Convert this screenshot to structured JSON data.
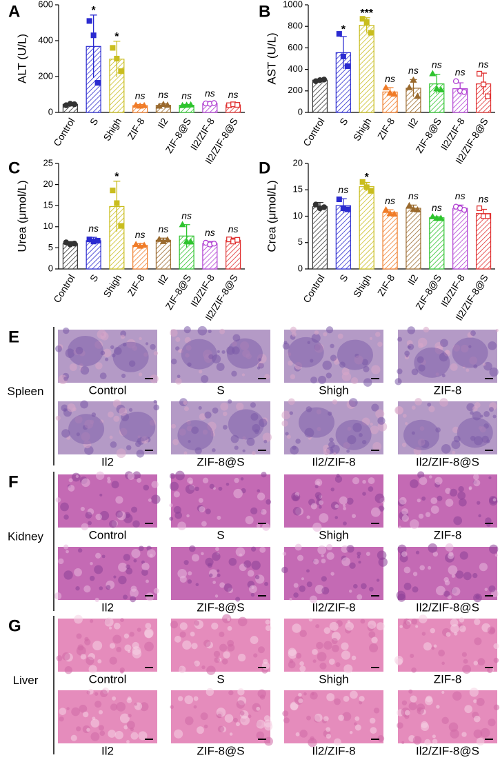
{
  "chart_data": [
    {
      "type": "bar",
      "panel": "A",
      "ylabel": "ALT (U/L)",
      "categories": [
        "Control",
        "S",
        "Shigh",
        "ZIF-8",
        "Il2",
        "ZIF-8@S",
        "Il2/ZIF-8",
        "Il2/ZIF-8@S"
      ],
      "colors": [
        "#333333",
        "#2b2bd0",
        "#c9bd1e",
        "#f07c28",
        "#9a6a2e",
        "#2ec42e",
        "#b03ed2",
        "#e03030"
      ],
      "values": [
        45,
        368,
        297,
        38,
        40,
        40,
        50,
        42
      ],
      "errors": [
        6,
        175,
        100,
        6,
        8,
        4,
        6,
        6
      ],
      "points": [
        [
          40,
          48,
          45
        ],
        [
          510,
          430,
          165
        ],
        [
          360,
          300,
          230
        ],
        [
          40,
          35,
          38
        ],
        [
          35,
          45,
          40
        ],
        [
          38,
          40,
          42
        ],
        [
          50,
          48,
          52
        ],
        [
          40,
          45,
          42
        ]
      ],
      "significance": [
        null,
        "*",
        "*",
        "ns",
        "ns",
        "ns",
        "ns",
        "ns"
      ],
      "ylim": [
        0,
        600
      ],
      "yticks": [
        0,
        200,
        400,
        600
      ]
    },
    {
      "type": "bar",
      "panel": "B",
      "ylabel": "AST (U/L)",
      "categories": [
        "Control",
        "S",
        "Shigh",
        "ZIF-8",
        "Il2",
        "ZIF-8@S",
        "Il2/ZIF-8",
        "Il2/ZIF-8@S"
      ],
      "colors": [
        "#333333",
        "#2b2bd0",
        "#c9bd1e",
        "#f07c28",
        "#9a6a2e",
        "#2ec42e",
        "#b03ed2",
        "#e03030"
      ],
      "values": [
        300,
        555,
        810,
        190,
        225,
        265,
        220,
        265
      ],
      "errors": [
        10,
        150,
        70,
        40,
        80,
        90,
        55,
        100
      ],
      "points": [
        [
          290,
          300,
          305
        ],
        [
          730,
          520,
          430
        ],
        [
          870,
          840,
          740
        ],
        [
          230,
          180,
          170
        ],
        [
          230,
          300,
          150
        ],
        [
          360,
          220,
          210
        ],
        [
          290,
          200,
          190
        ],
        [
          360,
          260,
          150
        ]
      ],
      "significance": [
        null,
        "*",
        "***",
        "ns",
        "ns",
        "ns",
        "ns",
        "ns"
      ],
      "ylim": [
        0,
        1000
      ],
      "yticks": [
        0,
        200,
        400,
        600,
        800,
        1000
      ]
    },
    {
      "type": "bar",
      "panel": "C",
      "ylabel": "Urea (μmol/L)",
      "categories": [
        "Control",
        "S",
        "Shigh",
        "ZIF-8",
        "Il2",
        "ZIF-8@S",
        "Il2/ZIF-8",
        "Il2/ZIF-8@S"
      ],
      "colors": [
        "#333333",
        "#2b2bd0",
        "#c9bd1e",
        "#f07c28",
        "#9a6a2e",
        "#2ec42e",
        "#b03ed2",
        "#e03030"
      ],
      "values": [
        6,
        6.7,
        14.8,
        5.6,
        6.8,
        7.8,
        6,
        6.8
      ],
      "errors": [
        0.5,
        0.8,
        6,
        0.4,
        0.5,
        2.7,
        0.5,
        0.5
      ],
      "points": [
        [
          6.3,
          5.8,
          6
        ],
        [
          7,
          6.5,
          6.7
        ],
        [
          18.6,
          15.6,
          10.2
        ],
        [
          5.8,
          5.4,
          5.6
        ],
        [
          7,
          6.5,
          6.9
        ],
        [
          10.5,
          6.5,
          6.4
        ],
        [
          6.2,
          5.8,
          6
        ],
        [
          7,
          6.5,
          6.9
        ]
      ],
      "significance": [
        null,
        "ns",
        "*",
        "ns",
        "ns",
        "ns",
        "ns",
        "ns"
      ],
      "ylim": [
        0,
        25
      ],
      "yticks": [
        0,
        5,
        10,
        15,
        20,
        25
      ]
    },
    {
      "type": "bar",
      "panel": "D",
      "ylabel": "Crea (μmol/L)",
      "categories": [
        "Control",
        "S",
        "Shigh",
        "ZIF-8",
        "Il2",
        "ZIF-8@S",
        "Il2/ZIF-8",
        "Il2/ZIF-8@S"
      ],
      "colors": [
        "#333333",
        "#2b2bd0",
        "#c9bd1e",
        "#f07c28",
        "#9a6a2e",
        "#2ec42e",
        "#b03ed2",
        "#e03030"
      ],
      "values": [
        11.8,
        12,
        15.6,
        10.7,
        11.5,
        9.7,
        11.5,
        10.5
      ],
      "errors": [
        0.8,
        1.3,
        0.8,
        0.5,
        0.6,
        0.2,
        0.6,
        0.8
      ],
      "points": [
        [
          12.2,
          11.5,
          11.7
        ],
        [
          13.2,
          11.5,
          11.3
        ],
        [
          16.5,
          15.5,
          14.8
        ],
        [
          11.2,
          10.5,
          10.4
        ],
        [
          12,
          11.3,
          11.2
        ],
        [
          9.9,
          9.6,
          9.6
        ],
        [
          11.8,
          11.5,
          11.2
        ],
        [
          11.5,
          10,
          10
        ]
      ],
      "significance": [
        null,
        "ns",
        "*",
        "ns",
        "ns",
        "ns",
        "ns",
        "ns"
      ],
      "ylim": [
        0,
        20
      ],
      "yticks": [
        0,
        5,
        10,
        15,
        20
      ]
    }
  ],
  "histology": [
    {
      "panel": "E",
      "tissue": "Spleen",
      "captions": [
        "Control",
        "S",
        "Shigh",
        "ZIF-8",
        "Il2",
        "ZIF-8@S",
        "Il2/ZIF-8",
        "Il2/ZIF-8@S"
      ]
    },
    {
      "panel": "F",
      "tissue": "Kidney",
      "captions": [
        "Control",
        "S",
        "Shigh",
        "ZIF-8",
        "Il2",
        "ZIF-8@S",
        "Il2/ZIF-8",
        "Il2/ZIF-8@S"
      ]
    },
    {
      "panel": "G",
      "tissue": "Liver",
      "captions": [
        "Control",
        "S",
        "Shigh",
        "ZIF-8",
        "Il2",
        "ZIF-8@S",
        "Il2/ZIF-8",
        "Il2/ZIF-8@S"
      ]
    }
  ]
}
